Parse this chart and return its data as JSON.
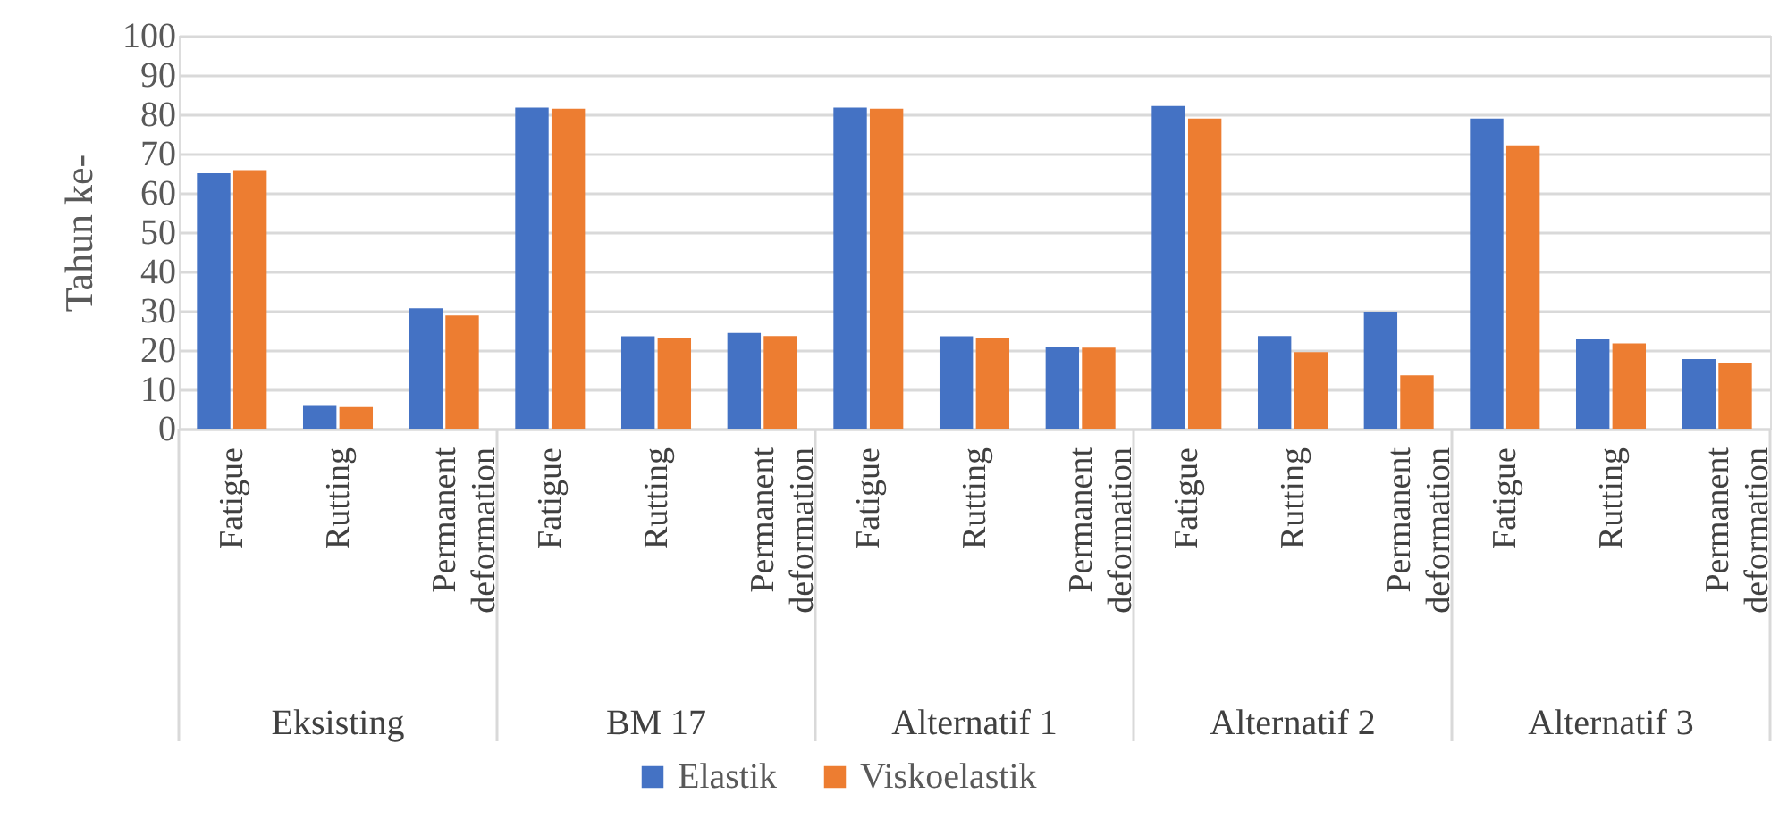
{
  "chart_data": {
    "type": "bar",
    "ylabel": "Tahun ke-",
    "categories": [
      "Fatigue",
      "Rutting",
      "Permanent deformation",
      "Fatigue",
      "Rutting",
      "Permanent deformation",
      "Fatigue",
      "Rutting",
      "Permanent deformation",
      "Fatigue",
      "Rutting",
      "Permanent deformation",
      "Fatigue",
      "Rutting",
      "Permanent deformation"
    ],
    "annotations": [
      "Eksisting",
      "BM 17",
      "Alternatif 1",
      "Alternatif 2",
      "Alternatif 3"
    ],
    "series": [
      {
        "name": "Elastik",
        "color": "#4472c4",
        "values": [
          65,
          5.8,
          30.6,
          81.7,
          23.5,
          24.4,
          81.7,
          23.5,
          20.8,
          82.1,
          23.6,
          29.8,
          78.9,
          22.7,
          17.7
        ]
      },
      {
        "name": "Viskoelastik",
        "color": "#ed7d31",
        "values": [
          65.8,
          5.5,
          28.8,
          81.4,
          23.2,
          23.6,
          81.4,
          23.2,
          20.6,
          78.9,
          19.5,
          13.6,
          72.1,
          21.7,
          16.8
        ]
      }
    ],
    "ylim": [
      0,
      100
    ],
    "yticks": [
      0,
      10,
      20,
      30,
      40,
      50,
      60,
      70,
      80,
      90,
      100
    ],
    "grid": "y",
    "legend": "bottom"
  }
}
